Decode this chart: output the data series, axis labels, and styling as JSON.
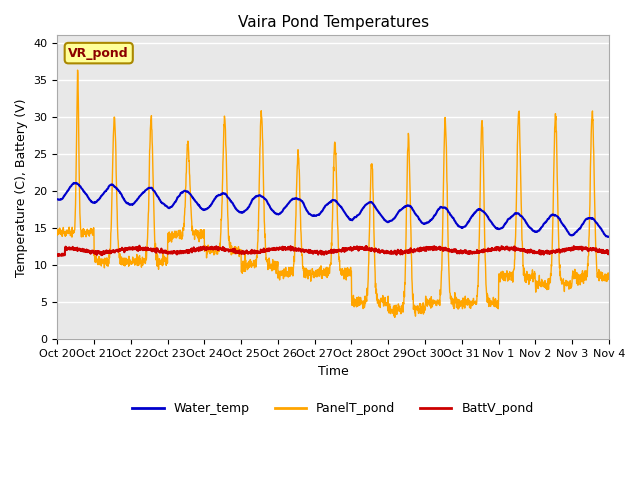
{
  "title": "Vaira Pond Temperatures",
  "xlabel": "Time",
  "ylabel": "Temperature (C), Battery (V)",
  "ylim": [
    0,
    41
  ],
  "yticks": [
    0,
    5,
    10,
    15,
    20,
    25,
    30,
    35,
    40
  ],
  "xtick_labels": [
    "Oct 20",
    "Oct 21",
    "Oct 22",
    "Oct 23",
    "Oct 24",
    "Oct 25",
    "Oct 26",
    "Oct 27",
    "Oct 28",
    "Oct 29",
    "Oct 30",
    "Oct 31",
    "Nov 1",
    "Nov 2",
    "Nov 3",
    "Nov 4"
  ],
  "water_color": "#0000cc",
  "panel_color": "#ffa500",
  "batt_color": "#cc0000",
  "bg_color": "#e8e8e8",
  "legend_label_water": "Water_temp",
  "legend_label_panel": "PanelT_pond",
  "legend_label_batt": "BattV_pond",
  "annotation_text": "VR_pond",
  "annotation_bg": "#ffff99",
  "annotation_border": "#aa8800"
}
